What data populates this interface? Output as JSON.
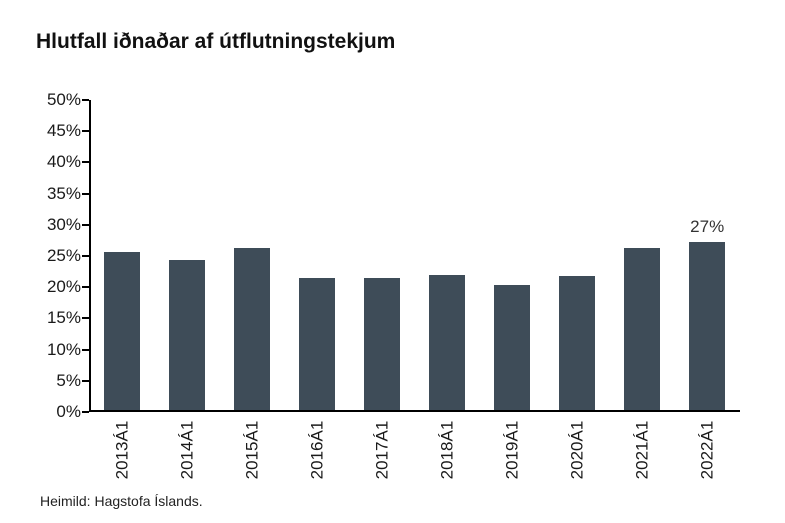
{
  "title": "Hlutfall iðnaðar af útflutningstekjum",
  "footer": "Heimild: Hagstofa Íslands.",
  "chart_data": {
    "type": "bar",
    "title": "Hlutfall iðnaðar af útflutningstekjum",
    "categories": [
      "2013Á1",
      "2014Á1",
      "2015Á1",
      "2016Á1",
      "2017Á1",
      "2018Á1",
      "2019Á1",
      "2020Á1",
      "2021Á1",
      "2022Á1"
    ],
    "values": [
      25.4,
      24.1,
      25.9,
      21.2,
      21.1,
      21.6,
      20.0,
      21.4,
      25.9,
      27.0
    ],
    "point_labels": [
      "",
      "",
      "",
      "",
      "",
      "",
      "",
      "",
      "",
      "27%"
    ],
    "xlabel": "",
    "ylabel": "",
    "ylim": [
      0,
      50
    ],
    "ytick_step": 5,
    "ytick_format": "percent",
    "grid": false,
    "legend_position": "none",
    "bar_color": "#3e4c58",
    "axis_color": "#000000",
    "tick_label_color": "#1a1a1a",
    "data_label_color": "#333333",
    "source": "Heimild: Hagstofa Íslands."
  }
}
